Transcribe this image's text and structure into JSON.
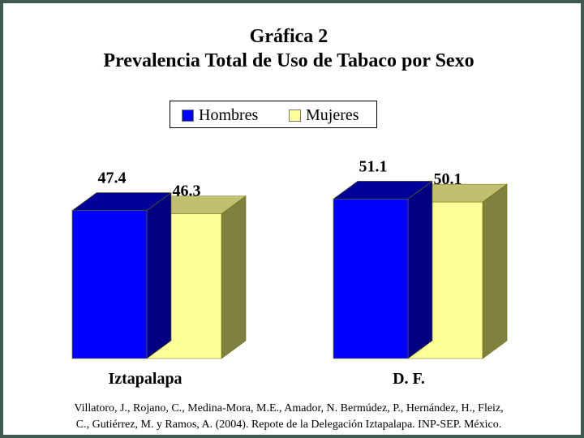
{
  "chart_data": {
    "type": "bar",
    "title": "Gráfica 2",
    "subtitle": "Prevalencia Total de Uso de Tabaco por Sexo",
    "categories": [
      "Iztapalapa",
      "D. F."
    ],
    "series": [
      {
        "name": "Hombres",
        "values": [
          47.4,
          51.1
        ],
        "color": "#0000ff"
      },
      {
        "name": "Mujeres",
        "values": [
          46.3,
          50.1
        ],
        "color": "#ffff99"
      }
    ],
    "data_labels": [
      [
        "47.4",
        "46.3"
      ],
      [
        "51.1",
        "50.1"
      ]
    ],
    "legend": "top-center",
    "grid": false
  },
  "source_line1": "Villatoro, J., Rojano, C., Medina-Mora, M.E., Amador, N. Bermúdez, P., Hernández, H., Fleiz,",
  "source_line2": "C., Gutiérrez, M. y Ramos, A. (2004). Repote de la Delegación Iztapalapa. INP-SEP. México.",
  "colors": {
    "frame": "#3f5a4e",
    "hombres_side": "#000080",
    "mujeres_side": "#808040",
    "hombres_top": "#000099",
    "mujeres_top": "#c0c070"
  }
}
